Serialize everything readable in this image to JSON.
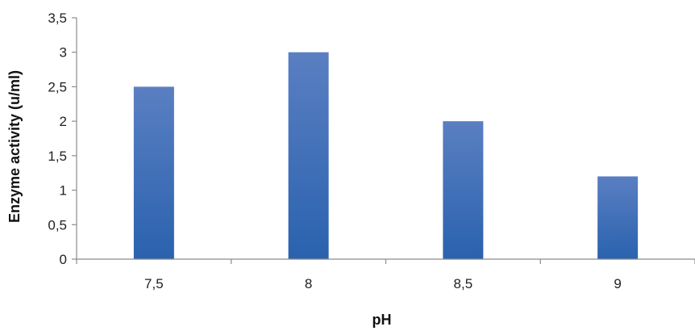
{
  "chart_data": {
    "type": "bar",
    "categories": [
      "7,5",
      "8",
      "8,5",
      "9"
    ],
    "values": [
      2.5,
      3.0,
      2.0,
      1.2
    ],
    "title": "",
    "xlabel": "pH",
    "ylabel": "Enzyme activity (u/ml)",
    "ylim": [
      0,
      3.5
    ],
    "yticks": [
      0,
      0.5,
      1,
      1.5,
      2,
      2.5,
      3,
      3.5
    ],
    "ytick_labels": [
      "0",
      "0,5",
      "1",
      "1,5",
      "2",
      "2,5",
      "3",
      "3,5"
    ],
    "grid": false,
    "legend": "none",
    "colors": {
      "bar_top": "#5a7fc2",
      "bar_bottom": "#2a62ae",
      "axis": "#8c8c8c"
    }
  }
}
